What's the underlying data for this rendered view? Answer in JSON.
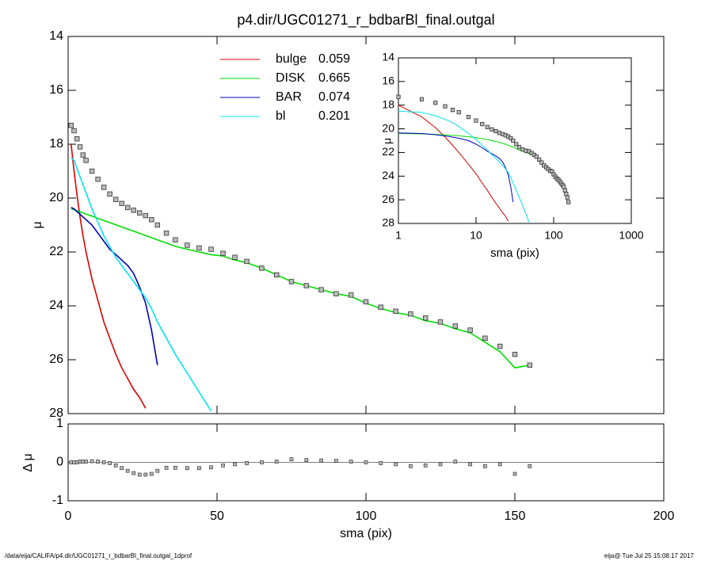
{
  "chart_data": [
    {
      "type": "line",
      "title": "p4.dir/UGC01271_r_bdbarBl_final.outgal",
      "ylabel": "μ",
      "ylim": [
        28,
        14
      ],
      "yticks": [
        14,
        16,
        18,
        20,
        22,
        24,
        26,
        28
      ],
      "x": [
        1,
        2,
        3,
        4,
        5,
        6,
        8,
        10,
        12,
        14,
        16,
        18,
        20,
        22,
        24,
        26,
        28,
        30,
        33,
        36,
        40,
        44,
        48,
        52,
        56,
        60,
        65,
        70,
        75,
        80,
        85,
        90,
        95,
        100,
        105,
        110,
        115,
        120,
        125,
        130,
        135,
        140,
        145,
        150,
        155
      ],
      "profile": [
        17.3,
        17.5,
        17.8,
        18.1,
        18.4,
        18.6,
        19.0,
        19.3,
        19.6,
        19.85,
        20.05,
        20.2,
        20.35,
        20.45,
        20.55,
        20.65,
        20.8,
        21.0,
        21.3,
        21.55,
        21.75,
        21.85,
        21.9,
        22.05,
        22.2,
        22.35,
        22.6,
        22.85,
        23.1,
        23.25,
        23.4,
        23.55,
        23.6,
        23.85,
        24.05,
        24.2,
        24.3,
        24.45,
        24.6,
        24.75,
        24.9,
        25.2,
        25.5,
        25.8,
        26.2
      ],
      "series": [
        {
          "name": "bulge",
          "fraction": 0.059,
          "color": "#dd0000",
          "values": [
            18.0,
            19.0,
            19.9,
            20.7,
            21.4,
            22.0,
            23.0,
            23.8,
            24.6,
            25.2,
            25.8,
            26.3,
            26.7,
            27.1,
            27.4,
            27.8,
            null,
            null,
            null,
            null,
            null,
            null,
            null,
            null,
            null,
            null,
            null,
            null,
            null,
            null,
            null,
            null,
            null,
            null,
            null,
            null,
            null,
            null,
            null,
            null,
            null,
            null,
            null,
            null,
            null
          ]
        },
        {
          "name": "DISK",
          "fraction": 0.665,
          "color": "#00dd00",
          "values": [
            20.39,
            20.43,
            20.47,
            20.51,
            20.55,
            20.59,
            20.67,
            20.75,
            20.83,
            20.91,
            20.99,
            21.07,
            21.15,
            21.23,
            21.31,
            21.39,
            21.47,
            21.55,
            21.67,
            21.79,
            21.9,
            22.0,
            22.1,
            22.15,
            22.3,
            22.4,
            22.6,
            22.85,
            23.1,
            23.25,
            23.4,
            23.55,
            23.65,
            23.9,
            24.1,
            24.25,
            24.35,
            24.55,
            24.65,
            24.85,
            25.0,
            25.35,
            25.7,
            26.3,
            26.2
          ]
        },
        {
          "name": "BAR",
          "fraction": 0.074,
          "color": "#0000bb",
          "values": [
            20.35,
            20.4,
            20.5,
            20.6,
            20.7,
            20.8,
            21.0,
            21.3,
            21.6,
            21.9,
            22.1,
            22.3,
            22.5,
            22.8,
            23.3,
            23.9,
            24.9,
            26.2,
            null,
            null,
            null,
            null,
            null,
            null,
            null,
            null,
            null,
            null,
            null,
            null,
            null,
            null,
            null,
            null,
            null,
            null,
            null,
            null,
            null,
            null,
            null,
            null,
            null,
            null,
            null
          ]
        },
        {
          "name": "bl",
          "fraction": 0.201,
          "color": "#00e5ee",
          "values": [
            18.5,
            18.6,
            18.9,
            19.2,
            19.5,
            19.8,
            20.4,
            20.9,
            21.4,
            21.8,
            22.2,
            22.5,
            22.8,
            23.1,
            23.4,
            23.7,
            24.1,
            24.6,
            25.2,
            25.8,
            26.5,
            27.2,
            27.9,
            null,
            null,
            null,
            null,
            null,
            null,
            null,
            null,
            null,
            null,
            null,
            null,
            null,
            null,
            null,
            null,
            null,
            null,
            null,
            null,
            null,
            null
          ]
        }
      ]
    },
    {
      "type": "line",
      "xlog": true,
      "xlabel": "sma (pix)",
      "ylabel": "μ",
      "xlim": [
        1,
        1000
      ],
      "xticks": [
        1,
        10,
        100,
        1000
      ],
      "ylim": [
        28,
        14
      ],
      "yticks": [
        14,
        16,
        18,
        20,
        22,
        24,
        26,
        28
      ]
    },
    {
      "type": "scatter",
      "xlabel": "sma (pix)",
      "ylabel": "Δ μ",
      "xlim": [
        0,
        200
      ],
      "xticks": [
        0,
        50,
        100,
        150,
        200
      ],
      "ylim": [
        -1,
        1
      ],
      "yticks": [
        -1,
        0,
        1
      ],
      "values": [
        0,
        0,
        0,
        0.02,
        0.02,
        0.02,
        0.03,
        0.02,
        0,
        -0.02,
        -0.08,
        -0.15,
        -0.22,
        -0.28,
        -0.32,
        -0.32,
        -0.3,
        -0.22,
        -0.14,
        -0.14,
        -0.15,
        -0.15,
        -0.13,
        -0.08,
        -0.05,
        -0.02,
        0,
        0.02,
        0.08,
        0.06,
        0.05,
        0.04,
        0.02,
        0,
        -0.02,
        -0.05,
        -0.1,
        -0.08,
        -0.05,
        0.02,
        -0.05,
        -0.1,
        -0.05,
        -0.3,
        -0.1
      ]
    }
  ],
  "footer": {
    "left": "/data/eija/CALIFA/p4.dir/UGC01271_r_bdbarBl_final.outgal_1dprof",
    "right": "eija@  Tue Jul 25 15:08:17 2017"
  }
}
